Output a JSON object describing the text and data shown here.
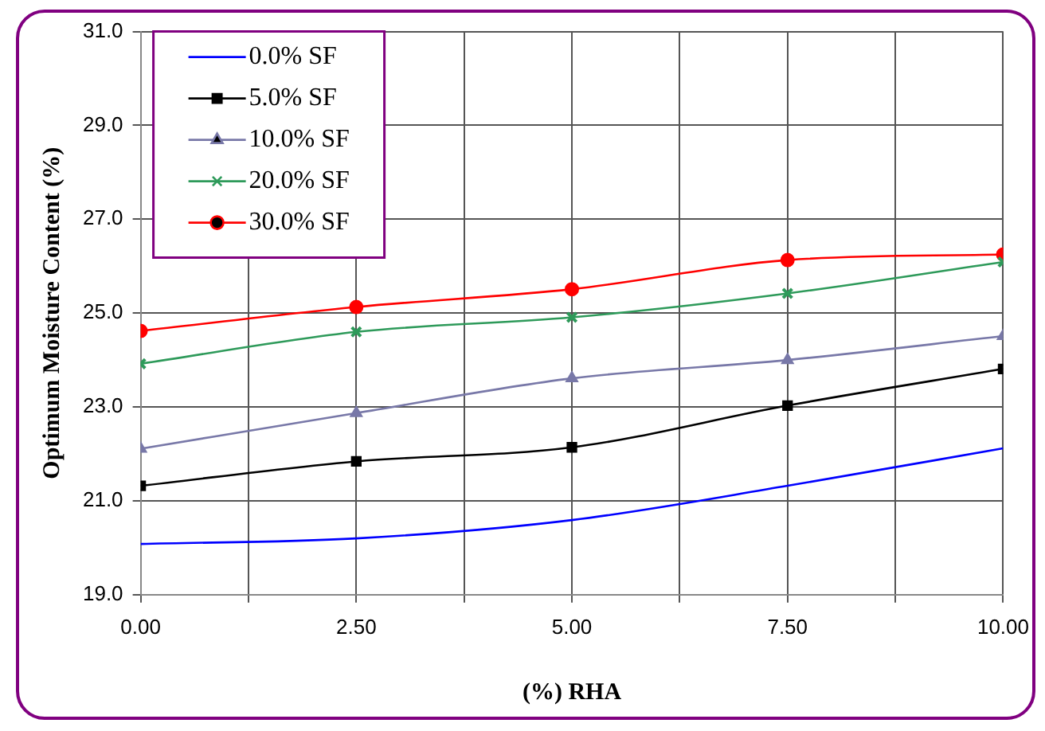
{
  "chart_data": {
    "type": "line",
    "xlabel": "(%) RHA",
    "ylabel": "Optimum Moisture Content (%)",
    "x": [
      0,
      2.5,
      5,
      7.5,
      10
    ],
    "series": [
      {
        "name": "0.0% SF",
        "color": "#0000ff",
        "marker": "none",
        "values": [
          20.08,
          20.2,
          20.59,
          21.32,
          22.12
        ]
      },
      {
        "name": "5.0% SF",
        "color": "#000000",
        "marker": "square",
        "values": [
          21.32,
          21.84,
          22.14,
          23.03,
          23.81
        ]
      },
      {
        "name": "10.0% SF",
        "color": "#7878a8",
        "marker": "triangle",
        "values": [
          22.11,
          22.87,
          23.61,
          24.0,
          24.51
        ]
      },
      {
        "name": "20.0% SF",
        "color": "#2e9a5a",
        "marker": "cross",
        "values": [
          23.92,
          24.6,
          24.91,
          25.42,
          26.09
        ]
      },
      {
        "name": "30.0% SF",
        "color": "#ff0000",
        "marker": "circle",
        "values": [
          24.62,
          25.13,
          25.51,
          26.13,
          26.25
        ]
      }
    ],
    "xlim": [
      0,
      10
    ],
    "xticks": [
      {
        "value": 0,
        "label": "0.00"
      },
      {
        "value": 1.25,
        "label": null
      },
      {
        "value": 2.5,
        "label": "2.50"
      },
      {
        "value": 3.75,
        "label": null
      },
      {
        "value": 5,
        "label": "5.00"
      },
      {
        "value": 6.25,
        "label": null
      },
      {
        "value": 7.5,
        "label": "7.50"
      },
      {
        "value": 8.75,
        "label": null
      },
      {
        "value": 10,
        "label": "10.00"
      }
    ],
    "ylim": [
      19,
      31
    ],
    "yticks": [
      {
        "value": 19,
        "label": "19.0"
      },
      {
        "value": 21,
        "label": "21.0"
      },
      {
        "value": 23,
        "label": "23.0"
      },
      {
        "value": 25,
        "label": "25.0"
      },
      {
        "value": 27,
        "label": "27.0"
      },
      {
        "value": 29,
        "label": "29.0"
      },
      {
        "value": 31,
        "label": "31.0"
      }
    ],
    "grid": true,
    "legend": "top left",
    "line_style": "solid"
  }
}
